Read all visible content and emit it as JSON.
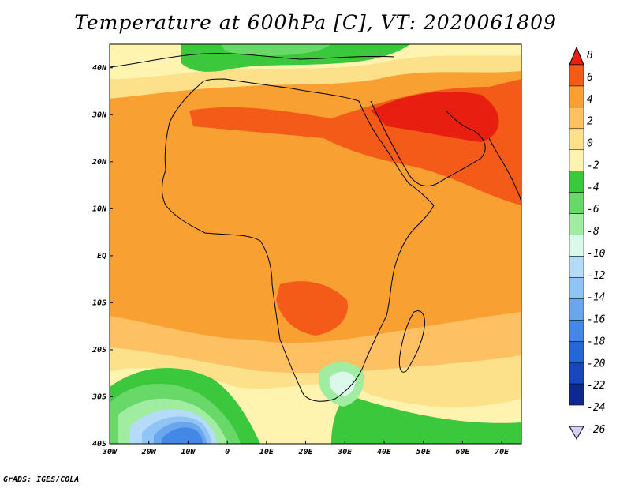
{
  "title": "Temperature at 600hPa [C], VT: 2020061809",
  "credit": "GrADS: IGES/COLA",
  "map": {
    "lon_range": [
      -30,
      75
    ],
    "lat_range": [
      -40,
      45
    ],
    "lat_ticks": [
      {
        "value": 40,
        "label": "40N"
      },
      {
        "value": 30,
        "label": "30N"
      },
      {
        "value": 20,
        "label": "20N"
      },
      {
        "value": 10,
        "label": "10N"
      },
      {
        "value": 0,
        "label": "EQ"
      },
      {
        "value": -10,
        "label": "10S"
      },
      {
        "value": -20,
        "label": "20S"
      },
      {
        "value": -30,
        "label": "30S"
      },
      {
        "value": -40,
        "label": "40S"
      }
    ],
    "lon_ticks": [
      {
        "value": -30,
        "label": "30W"
      },
      {
        "value": -20,
        "label": "20W"
      },
      {
        "value": -10,
        "label": "10W"
      },
      {
        "value": 0,
        "label": "0"
      },
      {
        "value": 10,
        "label": "10E"
      },
      {
        "value": 20,
        "label": "20E"
      },
      {
        "value": 30,
        "label": "30E"
      },
      {
        "value": 40,
        "label": "40E"
      },
      {
        "value": 50,
        "label": "50E"
      },
      {
        "value": 60,
        "label": "60E"
      },
      {
        "value": 70,
        "label": "70E"
      }
    ],
    "background_color": "#f9a032"
  },
  "colorbar": {
    "levels": [
      8,
      6,
      4,
      2,
      0,
      -2,
      -4,
      -6,
      -8,
      -10,
      -12,
      -14,
      -16,
      -18,
      -20,
      -22,
      -24,
      -26
    ],
    "colors": [
      "#e81e10",
      "#f45a18",
      "#f9a032",
      "#fdc062",
      "#fde08a",
      "#fef4b0",
      "#3cc83c",
      "#68d868",
      "#a0eca0",
      "#dcf8ea",
      "#b4dcf8",
      "#90c4f4",
      "#6aa6ee",
      "#4288e4",
      "#2468d8",
      "#1648bc",
      "#0c2a8e",
      "#d4d0f4"
    ]
  }
}
